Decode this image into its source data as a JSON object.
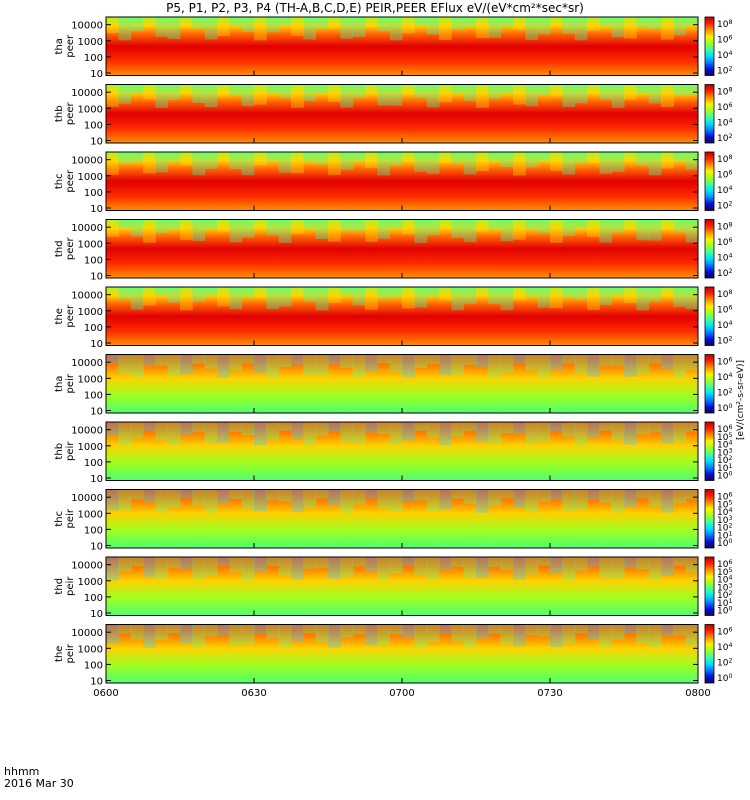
{
  "title": "P5, P1, P2, P3, P4 (TH-A,B,C,D,E) PEIR,PEER EFlux eV/(eV*cm²*sec*sr)",
  "footer": {
    "time_label": "hhmm",
    "date_label": "2016 Mar 30"
  },
  "colorbar_label": "[eV/(cm²-s-sr-eV)]",
  "colors": {
    "palette": [
      "#1a0057",
      "#0010d8",
      "#007fff",
      "#00dfff",
      "#3fff9f",
      "#9fff20",
      "#ffef00",
      "#ff8f00",
      "#ff2000",
      "#c00000"
    ]
  },
  "chart_data": [
    {
      "type": "heatmap",
      "panel": "tha-peer",
      "ylabel": [
        "tha",
        "peer"
      ],
      "yscale": "log",
      "ylim": [
        7,
        30000
      ],
      "yticks": [
        "10",
        "100",
        "1000",
        "10000"
      ],
      "xlim": [
        "0600",
        "0800"
      ],
      "colorbar_ticks": [
        "10^8",
        "10^6",
        "10^4",
        "10^2"
      ]
    },
    {
      "type": "heatmap",
      "panel": "thb-peer",
      "ylabel": [
        "thb",
        "peer"
      ],
      "yscale": "log",
      "ylim": [
        7,
        30000
      ],
      "yticks": [
        "10",
        "100",
        "1000",
        "10000"
      ],
      "xlim": [
        "0600",
        "0800"
      ],
      "colorbar_ticks": [
        "10^8",
        "10^6",
        "10^4",
        "10^2"
      ]
    },
    {
      "type": "heatmap",
      "panel": "thc-peer",
      "ylabel": [
        "thc",
        "peer"
      ],
      "yscale": "log",
      "ylim": [
        7,
        30000
      ],
      "yticks": [
        "10",
        "100",
        "1000",
        "10000"
      ],
      "xlim": [
        "0600",
        "0800"
      ],
      "colorbar_ticks": [
        "10^8",
        "10^6",
        "10^4",
        "10^2"
      ]
    },
    {
      "type": "heatmap",
      "panel": "thd-peer",
      "ylabel": [
        "thd",
        "peer"
      ],
      "yscale": "log",
      "ylim": [
        7,
        30000
      ],
      "yticks": [
        "10",
        "100",
        "1000",
        "10000"
      ],
      "xlim": [
        "0600",
        "0800"
      ],
      "colorbar_ticks": [
        "10^8",
        "10^6",
        "10^4",
        "10^2"
      ]
    },
    {
      "type": "heatmap",
      "panel": "the-peer",
      "ylabel": [
        "the",
        "peer"
      ],
      "yscale": "log",
      "ylim": [
        7,
        30000
      ],
      "yticks": [
        "10",
        "100",
        "1000",
        "10000"
      ],
      "xlim": [
        "0600",
        "0800"
      ],
      "colorbar_ticks": [
        "10^8",
        "10^6",
        "10^4",
        "10^2"
      ]
    },
    {
      "type": "heatmap",
      "panel": "tha-peir",
      "ylabel": [
        "tha",
        "peir"
      ],
      "yscale": "log",
      "ylim": [
        7,
        30000
      ],
      "yticks": [
        "10",
        "100",
        "1000",
        "10000"
      ],
      "xlim": [
        "0600",
        "0800"
      ],
      "colorbar_ticks": [
        "10^6",
        "10^4",
        "10^2",
        "10^0"
      ]
    },
    {
      "type": "heatmap",
      "panel": "thb-peir",
      "ylabel": [
        "thb",
        "peir"
      ],
      "yscale": "log",
      "ylim": [
        7,
        30000
      ],
      "yticks": [
        "10",
        "100",
        "1000",
        "10000"
      ],
      "xlim": [
        "0600",
        "0800"
      ],
      "colorbar_ticks": [
        "10^6",
        "10^5",
        "10^4",
        "10^3",
        "10^2",
        "10^1",
        "10^0"
      ]
    },
    {
      "type": "heatmap",
      "panel": "thc-peir",
      "ylabel": [
        "thc",
        "peir"
      ],
      "yscale": "log",
      "ylim": [
        7,
        30000
      ],
      "yticks": [
        "10",
        "100",
        "1000",
        "10000"
      ],
      "xlim": [
        "0600",
        "0800"
      ],
      "colorbar_ticks": [
        "10^6",
        "10^5",
        "10^4",
        "10^3",
        "10^2",
        "10^1",
        "10^0"
      ]
    },
    {
      "type": "heatmap",
      "panel": "thd-peir",
      "ylabel": [
        "thd",
        "peir"
      ],
      "yscale": "log",
      "ylim": [
        7,
        30000
      ],
      "yticks": [
        "10",
        "100",
        "1000",
        "10000"
      ],
      "xlim": [
        "0600",
        "0800"
      ],
      "colorbar_ticks": [
        "10^6",
        "10^5",
        "10^4",
        "10^3",
        "10^2",
        "10^1",
        "10^0"
      ]
    },
    {
      "type": "heatmap",
      "panel": "the-peir",
      "ylabel": [
        "the",
        "peir"
      ],
      "yscale": "log",
      "ylim": [
        7,
        30000
      ],
      "yticks": [
        "10",
        "100",
        "1000",
        "10000"
      ],
      "xlim": [
        "0600",
        "0800"
      ],
      "colorbar_ticks": [
        "10^6",
        "10^4",
        "10^2",
        "10^0"
      ]
    }
  ],
  "xaxis": {
    "ticks": [
      "0600",
      "0630",
      "0700",
      "0730",
      "0800"
    ]
  }
}
